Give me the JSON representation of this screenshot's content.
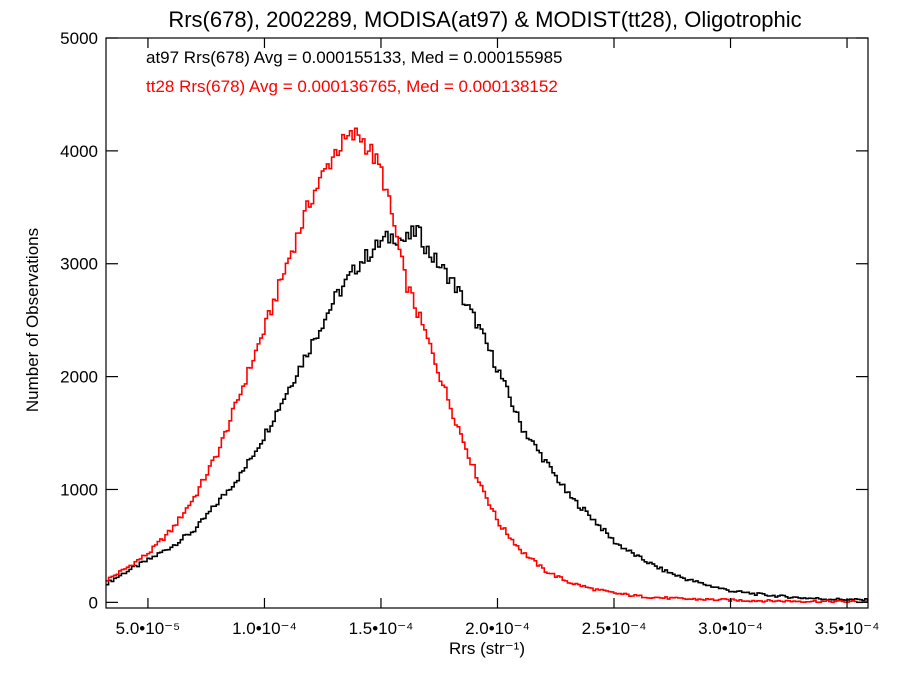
{
  "chart_data": {
    "type": "line",
    "title": "Rrs(678), 2002289, MODISA(at97) & MODIST(tt28), Oligotrophic",
    "xlabel": "Rrs (str⁻¹)",
    "ylabel": "Number of Observations",
    "xlim": [
      3.2e-05,
      0.000359
    ],
    "ylim": [
      -50,
      5000
    ],
    "grid": false,
    "x_ticks": [
      {
        "value": 5e-05,
        "label": "5.0•10⁻⁵"
      },
      {
        "value": 0.0001,
        "label": "1.0•10⁻⁴"
      },
      {
        "value": 0.00015,
        "label": "1.5•10⁻⁴"
      },
      {
        "value": 0.0002,
        "label": "2.0•10⁻⁴"
      },
      {
        "value": 0.00025,
        "label": "2.5•10⁻⁴"
      },
      {
        "value": 0.0003,
        "label": "3.0•10⁻⁴"
      },
      {
        "value": 0.00035,
        "label": "3.5•10⁻⁴"
      }
    ],
    "y_ticks": [
      {
        "value": 0,
        "label": "0"
      },
      {
        "value": 1000,
        "label": "1000"
      },
      {
        "value": 2000,
        "label": "2000"
      },
      {
        "value": 3000,
        "label": "3000"
      },
      {
        "value": 4000,
        "label": "4000"
      },
      {
        "value": 5000,
        "label": "5000"
      }
    ],
    "annotations": [
      {
        "text": "at97 Rrs(678) Avg = 0.000155133, Med = 0.000155985",
        "color": "#000000"
      },
      {
        "text": "tt28 Rrs(678) Avg = 0.000136765, Med = 0.000138152",
        "color": "#ff0000"
      }
    ],
    "series": [
      {
        "color": "#000000",
        "x": [
          3.2e-05,
          4e-05,
          5e-05,
          6e-05,
          7e-05,
          8e-05,
          9e-05,
          0.0001,
          0.00011,
          0.00012,
          0.00013,
          0.00014,
          0.00015,
          0.000155,
          0.00016,
          0.000165,
          0.00017,
          0.00018,
          0.00019,
          0.0002,
          0.00021,
          0.00022,
          0.00023,
          0.00024,
          0.00025,
          0.00026,
          0.00027,
          0.00028,
          0.00029,
          0.0003,
          0.00031,
          0.00032,
          0.00033,
          0.00034,
          0.00035,
          0.000359
        ],
        "y": [
          170,
          270,
          380,
          500,
          650,
          900,
          1150,
          1500,
          1900,
          2300,
          2700,
          3000,
          3200,
          3250,
          3200,
          3300,
          3100,
          2850,
          2500,
          2050,
          1550,
          1250,
          950,
          750,
          530,
          400,
          290,
          210,
          150,
          100,
          75,
          55,
          40,
          30,
          25,
          20
        ]
      },
      {
        "color": "#ff0000",
        "x": [
          3.2e-05,
          4e-05,
          5e-05,
          6e-05,
          7e-05,
          8e-05,
          9e-05,
          0.0001,
          0.00011,
          0.00012,
          0.00013,
          0.000135,
          0.00014,
          0.000145,
          0.00015,
          0.000155,
          0.00016,
          0.00017,
          0.00018,
          0.00019,
          0.0002,
          0.00021,
          0.00022,
          0.00023,
          0.00024,
          0.00025,
          0.00026,
          0.00027,
          0.00028,
          0.00029,
          0.0003,
          0.00031,
          0.00032,
          0.00033,
          0.00034,
          0.00035,
          0.000359
        ],
        "y": [
          200,
          300,
          440,
          650,
          950,
          1350,
          1900,
          2450,
          3050,
          3600,
          4000,
          4100,
          4150,
          4000,
          3800,
          3350,
          2850,
          2300,
          1700,
          1150,
          700,
          450,
          280,
          180,
          120,
          80,
          55,
          40,
          30,
          25,
          20,
          15,
          12,
          10,
          8,
          6,
          5
        ]
      }
    ]
  }
}
